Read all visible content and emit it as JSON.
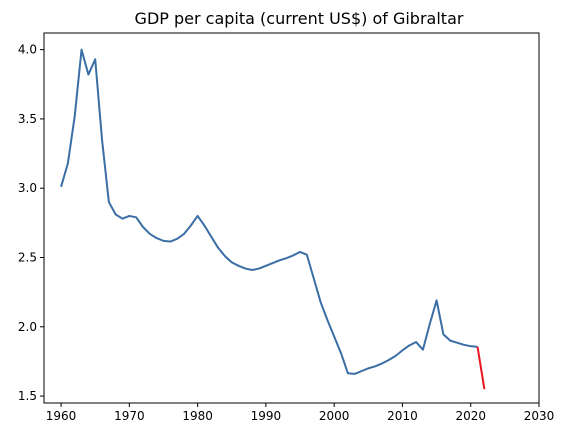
{
  "chart_data": {
    "type": "line",
    "title": "GDP per capita (current US$) of Gibraltar",
    "xlabel": "",
    "ylabel": "",
    "xlim": [
      1957.5,
      2030
    ],
    "ylim": [
      1.45,
      4.12
    ],
    "x_ticks": [
      1960,
      1970,
      1980,
      1990,
      2000,
      2010,
      2020,
      2030
    ],
    "y_ticks": [
      1.5,
      2.0,
      2.5,
      3.0,
      3.5,
      4.0
    ],
    "x_tick_labels": [
      "1960",
      "1970",
      "1980",
      "1990",
      "2000",
      "2010",
      "2020",
      "2030"
    ],
    "y_tick_labels": [
      "1.5",
      "2.0",
      "2.5",
      "3.0",
      "3.5",
      "4.0"
    ],
    "grid": false,
    "legend": "none",
    "series": [
      {
        "color": "#3a6ea5",
        "x": [
          1960,
          1961,
          1962,
          1963,
          1964,
          1965,
          1966,
          1967,
          1968,
          1969,
          1970,
          1971,
          1972,
          1973,
          1974,
          1975,
          1976,
          1977,
          1978,
          1979,
          1980,
          1981,
          1982,
          1983,
          1984,
          1985,
          1986,
          1987,
          1988,
          1989,
          1990,
          1991,
          1992,
          1993,
          1994,
          1995,
          1996,
          1997,
          1998,
          1999,
          2000,
          2001,
          2002,
          2003,
          2004,
          2005,
          2006,
          2007,
          2008,
          2009,
          2010,
          2011,
          2012,
          2013,
          2014,
          2015,
          2016,
          2017,
          2018,
          2019,
          2020,
          2021
        ],
        "y": [
          3.01,
          3.18,
          3.52,
          4.0,
          3.82,
          3.93,
          3.35,
          2.9,
          2.81,
          2.78,
          2.8,
          2.79,
          2.72,
          2.67,
          2.64,
          2.62,
          2.615,
          2.635,
          2.67,
          2.73,
          2.8,
          2.73,
          2.65,
          2.57,
          2.51,
          2.465,
          2.44,
          2.42,
          2.41,
          2.42,
          2.44,
          2.46,
          2.48,
          2.495,
          2.515,
          2.54,
          2.52,
          2.35,
          2.18,
          2.05,
          1.93,
          1.81,
          1.665,
          1.66,
          1.68,
          1.7,
          1.715,
          1.735,
          1.76,
          1.79,
          1.83,
          1.865,
          1.89,
          1.835,
          2.02,
          2.19,
          1.945,
          1.9,
          1.885,
          1.87,
          1.86,
          1.855
        ]
      },
      {
        "color": "#e8141e",
        "x": [
          2021,
          2022
        ],
        "y": [
          1.855,
          1.55
        ]
      }
    ]
  }
}
